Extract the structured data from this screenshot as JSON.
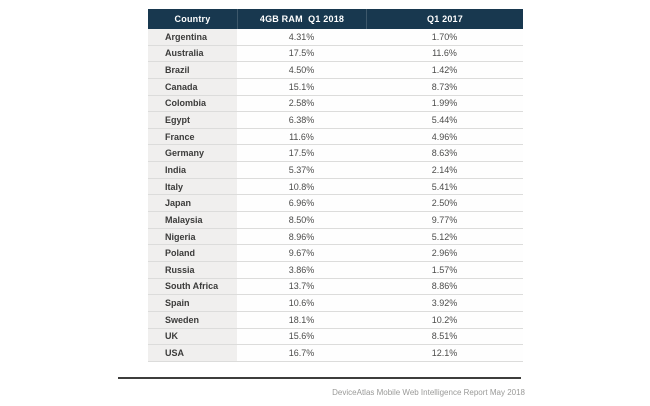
{
  "table": {
    "columns": [
      "Country",
      "4GB RAM  Q1 2018",
      "Q1 2017"
    ],
    "rows": [
      {
        "country": "Argentina",
        "q1_2018": "4.31%",
        "q1_2017": "1.70%"
      },
      {
        "country": "Australia",
        "q1_2018": "17.5%",
        "q1_2017": "11.6%"
      },
      {
        "country": "Brazil",
        "q1_2018": "4.50%",
        "q1_2017": "1.42%"
      },
      {
        "country": "Canada",
        "q1_2018": "15.1%",
        "q1_2017": "8.73%"
      },
      {
        "country": "Colombia",
        "q1_2018": "2.58%",
        "q1_2017": "1.99%"
      },
      {
        "country": "Egypt",
        "q1_2018": "6.38%",
        "q1_2017": "5.44%"
      },
      {
        "country": "France",
        "q1_2018": "11.6%",
        "q1_2017": "4.96%"
      },
      {
        "country": "Germany",
        "q1_2018": "17.5%",
        "q1_2017": "8.63%"
      },
      {
        "country": "India",
        "q1_2018": "5.37%",
        "q1_2017": "2.14%"
      },
      {
        "country": "Italy",
        "q1_2018": "10.8%",
        "q1_2017": "5.41%"
      },
      {
        "country": "Japan",
        "q1_2018": "6.96%",
        "q1_2017": "2.50%"
      },
      {
        "country": "Malaysia",
        "q1_2018": "8.50%",
        "q1_2017": "9.77%"
      },
      {
        "country": "Nigeria",
        "q1_2018": "8.96%",
        "q1_2017": "5.12%"
      },
      {
        "country": "Poland",
        "q1_2018": "9.67%",
        "q1_2017": "2.96%"
      },
      {
        "country": "Russia",
        "q1_2018": "3.86%",
        "q1_2017": "1.57%"
      },
      {
        "country": "South Africa",
        "q1_2018": "13.7%",
        "q1_2017": "8.86%"
      },
      {
        "country": "Spain",
        "q1_2018": "10.6%",
        "q1_2017": "3.92%"
      },
      {
        "country": "Sweden",
        "q1_2018": "18.1%",
        "q1_2017": "10.2%"
      },
      {
        "country": "UK",
        "q1_2018": "15.6%",
        "q1_2017": "8.51%"
      },
      {
        "country": "USA",
        "q1_2018": "16.7%",
        "q1_2017": "12.1%"
      }
    ]
  },
  "footer": {
    "source": "DeviceAtlas Mobile Web Intelligence Report May 2018"
  },
  "colors": {
    "header_bg": "#18384f",
    "header_text": "#ffffff",
    "country_col_bg": "#f0efee",
    "row_divider": "#dcdcdb",
    "footer_rule": "#3e3e3c",
    "footer_text": "#9a9a98"
  },
  "chart_data": {
    "type": "table",
    "title": "",
    "categories": [
      "Argentina",
      "Australia",
      "Brazil",
      "Canada",
      "Colombia",
      "Egypt",
      "France",
      "Germany",
      "India",
      "Italy",
      "Japan",
      "Malaysia",
      "Nigeria",
      "Poland",
      "Russia",
      "South Africa",
      "Spain",
      "Sweden",
      "UK",
      "USA"
    ],
    "series": [
      {
        "name": "4GB RAM Q1 2018",
        "values": [
          4.31,
          17.5,
          4.5,
          15.1,
          2.58,
          6.38,
          11.6,
          17.5,
          5.37,
          10.8,
          6.96,
          8.5,
          8.96,
          9.67,
          3.86,
          13.7,
          10.6,
          18.1,
          15.6,
          16.7
        ]
      },
      {
        "name": "Q1 2017",
        "values": [
          1.7,
          11.6,
          1.42,
          8.73,
          1.99,
          5.44,
          4.96,
          8.63,
          2.14,
          5.41,
          2.5,
          9.77,
          5.12,
          2.96,
          1.57,
          8.86,
          3.92,
          10.2,
          8.51,
          12.1
        ]
      }
    ],
    "unit": "%",
    "annotations": [
      "DeviceAtlas Mobile Web Intelligence Report May 2018"
    ]
  }
}
